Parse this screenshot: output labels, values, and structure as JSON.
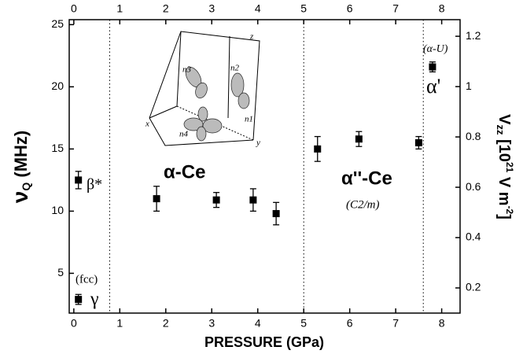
{
  "chart_data": {
    "type": "scatter",
    "x_label": "PRESSURE (GPa)",
    "y_label": {
      "symbol": "ν",
      "sub": "Q",
      "unit": " (MHz)"
    },
    "y2_label": {
      "symbol": "V",
      "sub": "zz",
      "unit_a": " [10",
      "sup": "21",
      "unit_b": " V m",
      "sup2": "-2",
      "unit_c": "]"
    },
    "x": [
      0.1,
      0.1,
      1.8,
      3.1,
      3.9,
      4.4,
      5.3,
      6.2,
      7.5,
      7.8
    ],
    "values": [
      12.5,
      2.9,
      11.0,
      10.9,
      10.9,
      9.8,
      15.0,
      15.8,
      15.5,
      21.6
    ],
    "errors": [
      0.7,
      0.4,
      1.0,
      0.6,
      0.9,
      0.9,
      1.0,
      0.6,
      0.5,
      0.4
    ],
    "color": "#000000",
    "phase_boundaries": [
      0.78,
      5.0,
      7.6
    ],
    "xlim": [
      -0.1,
      8.4
    ],
    "xticks": [
      0,
      1,
      2,
      3,
      4,
      5,
      6,
      7,
      8
    ],
    "ylim": [
      1.8,
      25.4
    ],
    "yticks": [
      5,
      10,
      15,
      20,
      25
    ],
    "y2lim": [
      0.1,
      1.266
    ],
    "y2ticks": [
      0.2,
      0.4,
      0.6,
      0.8,
      1.0,
      1.2
    ],
    "annotations": {
      "beta": "β*",
      "fcc": "(fcc)",
      "gamma": "γ",
      "alpha_ce": "α-Ce",
      "alpha2_ce": "α''-Ce",
      "c2m": "(C2/m)",
      "alpha_u": "(α-U)",
      "alpha_prime": "α'"
    },
    "inset": {
      "x": "x",
      "y": "y",
      "z": "z",
      "n1": "n1",
      "n2": "n2",
      "n3": "n3",
      "n4": "n4"
    }
  }
}
